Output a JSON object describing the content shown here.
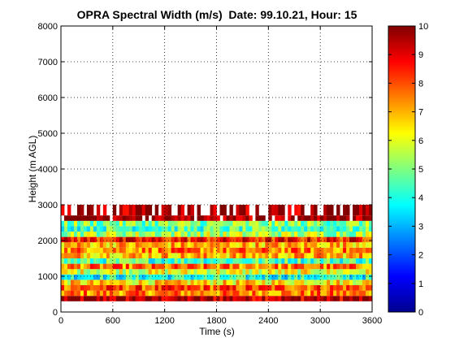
{
  "chart_data": {
    "type": "heatmap",
    "title": "OPRA Spectral Width (m/s)  Date: 99.10.21, Hour: 15",
    "xlabel": "Time (s)",
    "ylabel": "Height (m AGL)",
    "xlim": [
      0,
      3600
    ],
    "ylim": [
      0,
      8000
    ],
    "x_ticks": [
      "0",
      "600",
      "1200",
      "1800",
      "2400",
      "3000",
      "3600"
    ],
    "y_ticks": [
      "0",
      "1000",
      "2000",
      "3000",
      "4000",
      "5000",
      "6000",
      "7000",
      "8000"
    ],
    "grid": true,
    "colorbar": {
      "colormap": "jet",
      "min": 0,
      "max": 10,
      "ticks": [
        "0",
        "1",
        "2",
        "3",
        "4",
        "5",
        "6",
        "7",
        "8",
        "9",
        "10"
      ]
    },
    "layers": [
      {
        "height_range": [
          300,
          450
        ],
        "value": 9.5
      },
      {
        "height_range": [
          450,
          600
        ],
        "value": 7.5
      },
      {
        "height_range": [
          600,
          750
        ],
        "value": 8.0
      },
      {
        "height_range": [
          750,
          900
        ],
        "value": 6.5
      },
      {
        "height_range": [
          900,
          1050
        ],
        "value": 4.0
      },
      {
        "height_range": [
          1050,
          1200
        ],
        "value": 6.0
      },
      {
        "height_range": [
          1200,
          1350
        ],
        "value": 7.5
      },
      {
        "height_range": [
          1350,
          1500
        ],
        "value": 4.5
      },
      {
        "height_range": [
          1500,
          1650
        ],
        "value": 7.0
      },
      {
        "height_range": [
          1650,
          1800
        ],
        "value": 7.5
      },
      {
        "height_range": [
          1800,
          1950
        ],
        "value": 7.0
      },
      {
        "height_range": [
          1950,
          2100
        ],
        "value": 8.5
      },
      {
        "height_range": [
          2100,
          2250
        ],
        "value": 5.5
      },
      {
        "height_range": [
          2250,
          2400
        ],
        "value": 4.5
      },
      {
        "height_range": [
          2400,
          2550
        ],
        "value": 5.0
      },
      {
        "height_range": [
          2550,
          2700
        ],
        "value": 9.8
      },
      {
        "height_range": [
          2700,
          3000
        ],
        "value": 9.8
      }
    ]
  }
}
